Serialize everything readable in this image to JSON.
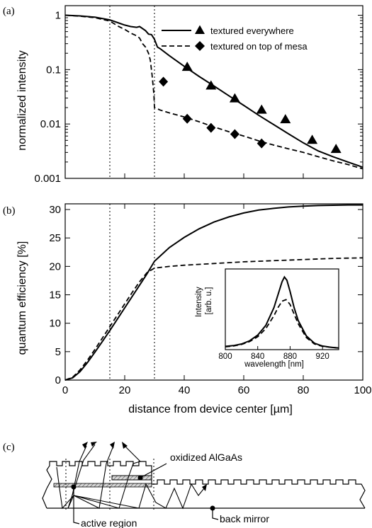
{
  "colors": {
    "line": "#000000",
    "background": "#ffffff",
    "hatch": "#7a7a7a"
  },
  "chart_data": [
    {
      "panel": "(a)",
      "type": "line",
      "ylabel": "normalized intensity",
      "xlim": [
        0,
        100
      ],
      "ylim": [
        0.001,
        1.5
      ],
      "yscale": "log",
      "y_tick_labels": [
        "0.001",
        "0.01",
        "0.1",
        "1"
      ],
      "y_ticks": [
        0.001,
        0.01,
        0.1,
        1
      ],
      "x_ticks": [
        0,
        20,
        40,
        60,
        80,
        100
      ],
      "vertical_reference_lines_x": [
        15,
        30
      ],
      "legend_position": "top-right",
      "series": [
        {
          "name": "textured everywhere",
          "line": "solid",
          "marker": "triangle",
          "curve_x": [
            0,
            5,
            10,
            15,
            18,
            20,
            22,
            24,
            25,
            27,
            28,
            29,
            30,
            31,
            32,
            35,
            40,
            45,
            50,
            55,
            60,
            65,
            70,
            75,
            80,
            85,
            90,
            95,
            100
          ],
          "curve_y": [
            1.0,
            0.97,
            0.92,
            0.82,
            0.72,
            0.66,
            0.62,
            0.6,
            0.62,
            0.52,
            0.45,
            0.44,
            0.36,
            0.26,
            0.24,
            0.18,
            0.115,
            0.075,
            0.05,
            0.033,
            0.022,
            0.0145,
            0.0098,
            0.0066,
            0.0045,
            0.0032,
            0.0025,
            0.002,
            0.0016
          ],
          "marker_x": [
            41,
            49,
            57,
            66,
            74,
            83,
            91
          ],
          "marker_y": [
            0.11,
            0.05,
            0.029,
            0.018,
            0.012,
            0.005,
            0.0034
          ]
        },
        {
          "name": "textured on top of mesa",
          "line": "dashed",
          "marker": "diamond",
          "curve_x": [
            0,
            5,
            10,
            15,
            18,
            20,
            22,
            24,
            25,
            26,
            27,
            28,
            28.6,
            29.2,
            29.8,
            30,
            32,
            35,
            40,
            45,
            50,
            55,
            60,
            65,
            70,
            75,
            80,
            85,
            90,
            95,
            100
          ],
          "curve_y": [
            1.0,
            0.96,
            0.9,
            0.78,
            0.62,
            0.55,
            0.47,
            0.42,
            0.38,
            0.3,
            0.26,
            0.2,
            0.15,
            0.08,
            0.035,
            0.02,
            0.018,
            0.016,
            0.0135,
            0.011,
            0.0088,
            0.0072,
            0.006,
            0.0049,
            0.0041,
            0.0035,
            0.003,
            0.0025,
            0.0021,
            0.0018,
            0.0015
          ],
          "marker_x": [
            33,
            41,
            49,
            57,
            66
          ],
          "marker_y": [
            0.06,
            0.0125,
            0.0085,
            0.0065,
            0.0044
          ]
        }
      ]
    },
    {
      "panel": "(b)",
      "type": "line",
      "xlabel": "distance from device center [µm]",
      "ylabel": "quantum efficiency [%]",
      "xlim": [
        0,
        100
      ],
      "ylim": [
        0,
        31
      ],
      "x_ticks": [
        0,
        20,
        40,
        60,
        80,
        100
      ],
      "y_ticks": [
        0,
        5,
        10,
        15,
        20,
        25,
        30
      ],
      "vertical_reference_lines_x": [
        15,
        30
      ],
      "series": [
        {
          "line": "solid",
          "x": [
            0,
            2.5,
            5,
            7.5,
            10,
            12.5,
            15,
            17.5,
            20,
            22.5,
            25,
            27.5,
            30,
            35,
            40,
            45,
            50,
            55,
            60,
            65,
            70,
            75,
            80,
            85,
            90,
            95,
            100
          ],
          "y": [
            0,
            0.4,
            1.5,
            3.1,
            4.9,
            6.8,
            8.7,
            10.7,
            12.7,
            14.7,
            16.7,
            18.7,
            20.9,
            23.3,
            25.1,
            26.6,
            27.8,
            28.7,
            29.4,
            29.9,
            30.2,
            30.45,
            30.6,
            30.7,
            30.75,
            30.8,
            30.8
          ]
        },
        {
          "line": "dashed",
          "x": [
            0,
            2.5,
            5,
            7.5,
            10,
            12.5,
            15,
            17.5,
            20,
            22.5,
            25,
            27.5,
            30,
            35,
            40,
            50,
            60,
            70,
            80,
            90,
            100
          ],
          "y": [
            0,
            0.5,
            1.8,
            3.5,
            5.4,
            7.4,
            9.4,
            11.4,
            13.4,
            15.4,
            17.3,
            18.9,
            19.7,
            20.0,
            20.2,
            20.5,
            20.8,
            21.0,
            21.2,
            21.4,
            21.5
          ]
        }
      ],
      "inset": {
        "type": "line",
        "xlabel": "wavelength [nm]",
        "ylabel": "Intensity [arb. u.]",
        "xlim": [
          800,
          940
        ],
        "x_ticks": [
          800,
          840,
          880,
          920
        ],
        "series": [
          {
            "line": "solid",
            "x": [
              800,
              810,
              820,
              830,
              840,
              850,
              860,
              865,
              870,
              873,
              876,
              880,
              885,
              890,
              900,
              910,
              920,
              930,
              940
            ],
            "y": [
              0.04,
              0.05,
              0.07,
              0.11,
              0.18,
              0.3,
              0.52,
              0.68,
              0.84,
              0.9,
              0.86,
              0.72,
              0.52,
              0.36,
              0.17,
              0.08,
              0.045,
              0.03,
              0.02
            ]
          },
          {
            "line": "dashed",
            "x": [
              800,
              810,
              820,
              830,
              840,
              850,
              860,
              865,
              870,
              875,
              880,
              885,
              890,
              900,
              910,
              920,
              930,
              940
            ],
            "y": [
              0.035,
              0.045,
              0.065,
              0.1,
              0.16,
              0.26,
              0.42,
              0.52,
              0.6,
              0.62,
              0.56,
              0.44,
              0.32,
              0.15,
              0.07,
              0.04,
              0.03,
              0.02
            ]
          }
        ]
      }
    }
  ],
  "diagram": {
    "panel": "(c)",
    "labels": {
      "oxidized": "oxidized AlGaAs",
      "active": "active region",
      "mirror": "back mirror"
    }
  }
}
